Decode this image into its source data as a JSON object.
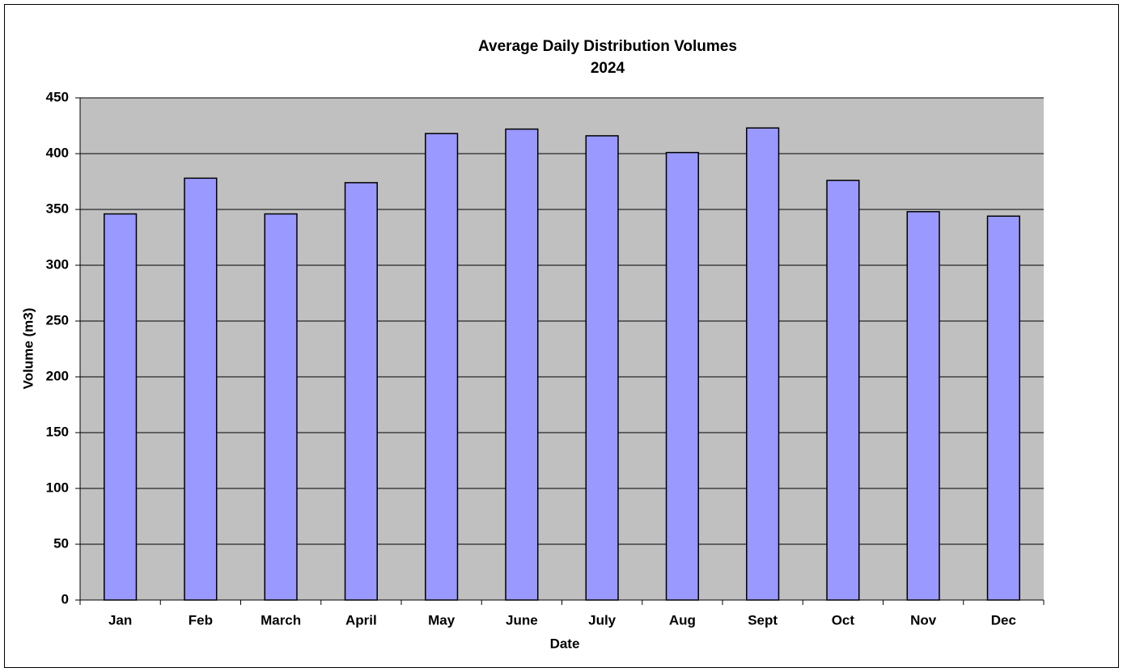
{
  "chart_data": {
    "type": "bar",
    "title": "Average Daily Distribution Volumes",
    "subtitle": "2024",
    "x_label": "Date",
    "y_label": "Volume (m3)",
    "categories": [
      "Jan",
      "Feb",
      "March",
      "April",
      "May",
      "June",
      "July",
      "Aug",
      "Sept",
      "Oct",
      "Nov",
      "Dec"
    ],
    "values": [
      346,
      378,
      346,
      374,
      418,
      422,
      416,
      401,
      423,
      376,
      348,
      344
    ],
    "color": "#9999ff",
    "ylim": [
      0,
      450
    ],
    "yticks": [
      0,
      50,
      100,
      150,
      200,
      250,
      300,
      350,
      400,
      450
    ],
    "grid": true
  }
}
